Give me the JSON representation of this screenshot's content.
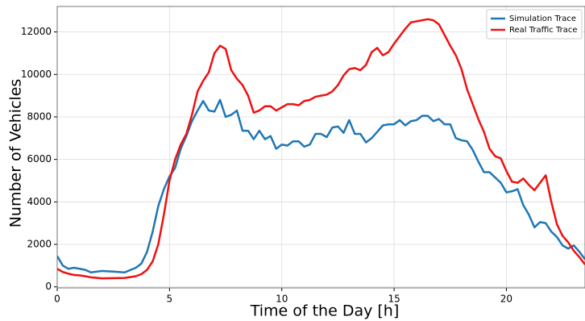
{
  "chart_data": {
    "type": "line",
    "xlabel": "Time of the Day [h]",
    "ylabel": "Number of Vehicles",
    "x": [
      0,
      0.25,
      0.5,
      0.75,
      1,
      1.25,
      1.5,
      2,
      2.5,
      3,
      3.5,
      3.75,
      4,
      4.25,
      4.5,
      4.75,
      5,
      5.25,
      5.5,
      5.75,
      6,
      6.25,
      6.5,
      6.75,
      7,
      7.25,
      7.5,
      7.75,
      8,
      8.25,
      8.5,
      8.75,
      9,
      9.25,
      9.5,
      9.75,
      10,
      10.25,
      10.5,
      10.75,
      11,
      11.25,
      11.5,
      11.75,
      12,
      12.25,
      12.5,
      12.75,
      13,
      13.25,
      13.5,
      13.75,
      14,
      14.25,
      14.5,
      14.75,
      15,
      15.25,
      15.5,
      15.75,
      16,
      16.25,
      16.5,
      16.75,
      17,
      17.25,
      17.5,
      17.75,
      18,
      18.25,
      18.5,
      18.75,
      19,
      19.25,
      19.5,
      19.75,
      20,
      20.25,
      20.5,
      20.75,
      21,
      21.25,
      21.5,
      21.75,
      22,
      22.25,
      22.5,
      22.75,
      23,
      23.25,
      23.5
    ],
    "series": [
      {
        "name": "Simulation Trace",
        "color": "#1f77b4",
        "values": [
          1450,
          1000,
          850,
          900,
          850,
          800,
          680,
          750,
          720,
          680,
          900,
          1100,
          1650,
          2600,
          3800,
          4600,
          5200,
          5600,
          6500,
          7100,
          7800,
          8300,
          8750,
          8300,
          8250,
          8800,
          8000,
          8100,
          8300,
          7350,
          7350,
          6950,
          7350,
          6950,
          7100,
          6500,
          6700,
          6650,
          6850,
          6850,
          6600,
          6700,
          7200,
          7200,
          7050,
          7500,
          7550,
          7250,
          7850,
          7200,
          7200,
          6800,
          7000,
          7300,
          7600,
          7650,
          7650,
          7850,
          7600,
          7800,
          7850,
          8050,
          8050,
          7800,
          7900,
          7650,
          7650,
          7000,
          6900,
          6850,
          6450,
          5900,
          5400,
          5400,
          5150,
          4900,
          4450,
          4500,
          4600,
          3850,
          3400,
          2800,
          3050,
          3000,
          2600,
          2350,
          1950,
          1800,
          1950,
          1650,
          1300
        ]
      },
      {
        "name": "Real Traffic Trace",
        "color": "#ee1111",
        "values": [
          850,
          700,
          620,
          560,
          540,
          500,
          450,
          400,
          410,
          420,
          500,
          600,
          800,
          1200,
          2000,
          3400,
          5000,
          6000,
          6700,
          7200,
          8100,
          9200,
          9700,
          10100,
          11000,
          11350,
          11200,
          10200,
          9800,
          9500,
          9000,
          8200,
          8300,
          8500,
          8500,
          8300,
          8450,
          8600,
          8600,
          8550,
          8750,
          8800,
          8950,
          9000,
          9050,
          9200,
          9500,
          9950,
          10250,
          10300,
          10200,
          10450,
          11050,
          11250,
          10900,
          11050,
          11450,
          11800,
          12150,
          12450,
          12500,
          12550,
          12600,
          12550,
          12350,
          11850,
          11350,
          10900,
          10250,
          9300,
          8600,
          7900,
          7300,
          6500,
          6150,
          6050,
          5450,
          4950,
          4900,
          5100,
          4800,
          4550,
          4900,
          5250,
          4000,
          2950,
          2400,
          2100,
          1700,
          1400,
          1050
        ]
      }
    ],
    "xlim": [
      0,
      23.5
    ],
    "xticks": [
      0,
      5,
      10,
      15,
      20
    ],
    "ylim": [
      -50,
      13200
    ],
    "yticks": [
      0,
      2000,
      4000,
      6000,
      8000,
      10000,
      12000
    ],
    "grid": true,
    "legend": "upper right"
  }
}
